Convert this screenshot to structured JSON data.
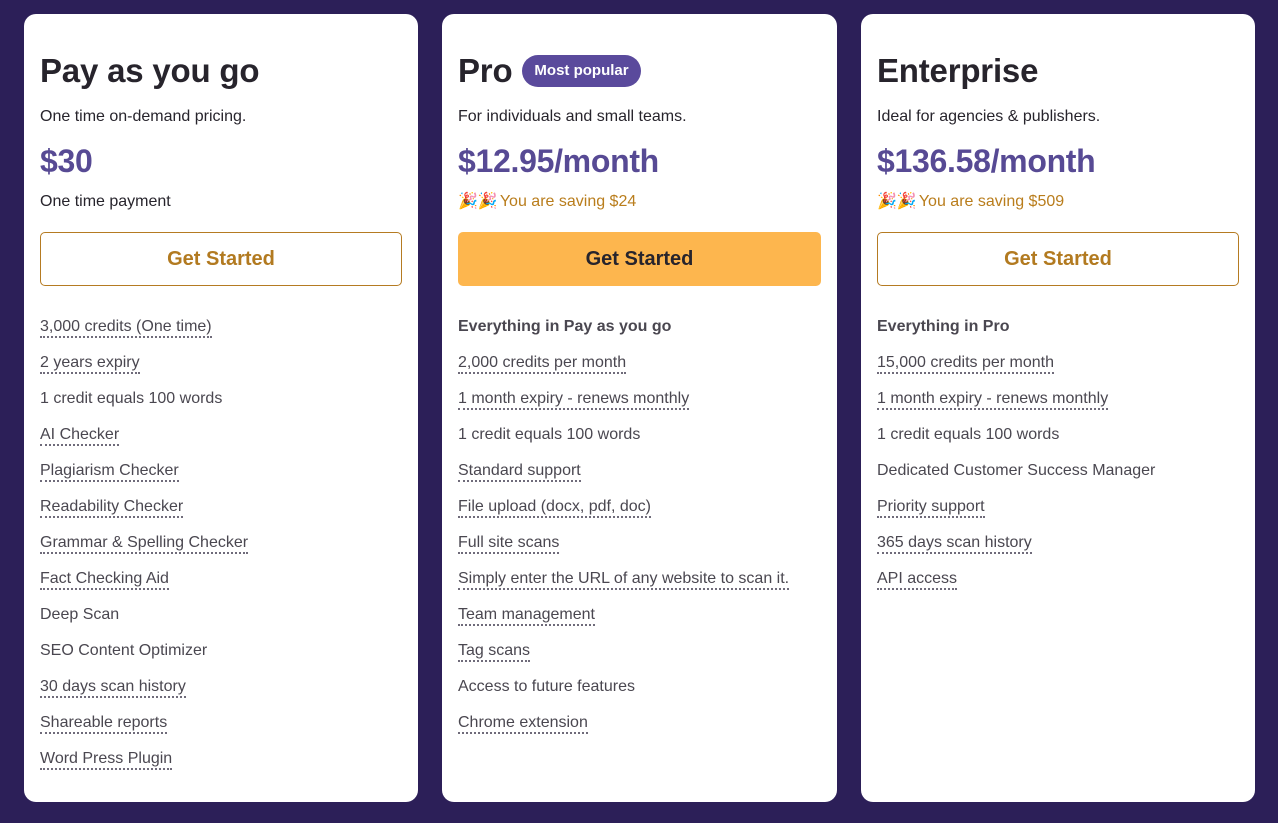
{
  "plans": [
    {
      "name": "Pay as you go",
      "description": "One time on-demand pricing.",
      "price": "$30",
      "note": "One time payment",
      "cta": "Get Started",
      "features": [
        {
          "text": "3,000 credits (One time)",
          "tooltip": true
        },
        {
          "text": "2 years expiry",
          "tooltip": true
        },
        {
          "text": "1 credit equals 100 words",
          "tooltip": false
        },
        {
          "text": "AI Checker",
          "tooltip": true
        },
        {
          "text": "Plagiarism Checker",
          "tooltip": true
        },
        {
          "text": "Readability Checker",
          "tooltip": true
        },
        {
          "text": "Grammar & Spelling Checker",
          "tooltip": true
        },
        {
          "text": "Fact Checking Aid",
          "tooltip": true
        },
        {
          "text": "Deep Scan",
          "tooltip": false
        },
        {
          "text": "SEO Content Optimizer",
          "tooltip": false
        },
        {
          "text": "30 days scan history",
          "tooltip": true
        },
        {
          "text": "Shareable reports",
          "tooltip": true
        },
        {
          "text": "Word Press Plugin",
          "tooltip": true
        }
      ]
    },
    {
      "name": "Pro",
      "badge": "Most popular",
      "description": "For individuals and small teams.",
      "price": "$12.95/month",
      "saving_icons": "🎉🎉",
      "saving": "You are saving $24",
      "cta": "Get Started",
      "features_heading": "Everything in Pay as you go",
      "features": [
        {
          "text": "2,000 credits per month",
          "tooltip": true
        },
        {
          "text": "1 month expiry - renews monthly",
          "tooltip": true
        },
        {
          "text": "1 credit equals 100 words",
          "tooltip": false
        },
        {
          "text": "Standard support",
          "tooltip": true
        },
        {
          "text": "File upload (docx, pdf, doc)",
          "tooltip": true
        },
        {
          "text": "Full site scans",
          "tooltip": true
        },
        {
          "text": "Simply enter the URL of any website to scan it.",
          "tooltip": true
        },
        {
          "text": "Team management",
          "tooltip": true
        },
        {
          "text": "Tag scans",
          "tooltip": true
        },
        {
          "text": "Access to future features",
          "tooltip": false
        },
        {
          "text": "Chrome extension",
          "tooltip": true
        }
      ]
    },
    {
      "name": "Enterprise",
      "description": "Ideal for agencies & publishers.",
      "price": "$136.58/month",
      "saving_icons": "🎉🎉",
      "saving": "You are saving $509",
      "cta": "Get Started",
      "features_heading": "Everything in Pro",
      "features": [
        {
          "text": "15,000 credits per month",
          "tooltip": true
        },
        {
          "text": "1 month expiry - renews monthly",
          "tooltip": true
        },
        {
          "text": "1 credit equals 100 words",
          "tooltip": false
        },
        {
          "text": "Dedicated Customer Success Manager",
          "tooltip": false
        },
        {
          "text": "Priority support",
          "tooltip": true
        },
        {
          "text": "365 days scan history",
          "tooltip": true
        },
        {
          "text": "API access",
          "tooltip": true
        }
      ]
    }
  ],
  "colors": {
    "background": "#2c1f58",
    "price": "#574a94",
    "badge": "#5a4a9c",
    "accent_button": "#fdb64e",
    "outline_button": "#b27a20",
    "saving_text": "#b97d1c"
  }
}
